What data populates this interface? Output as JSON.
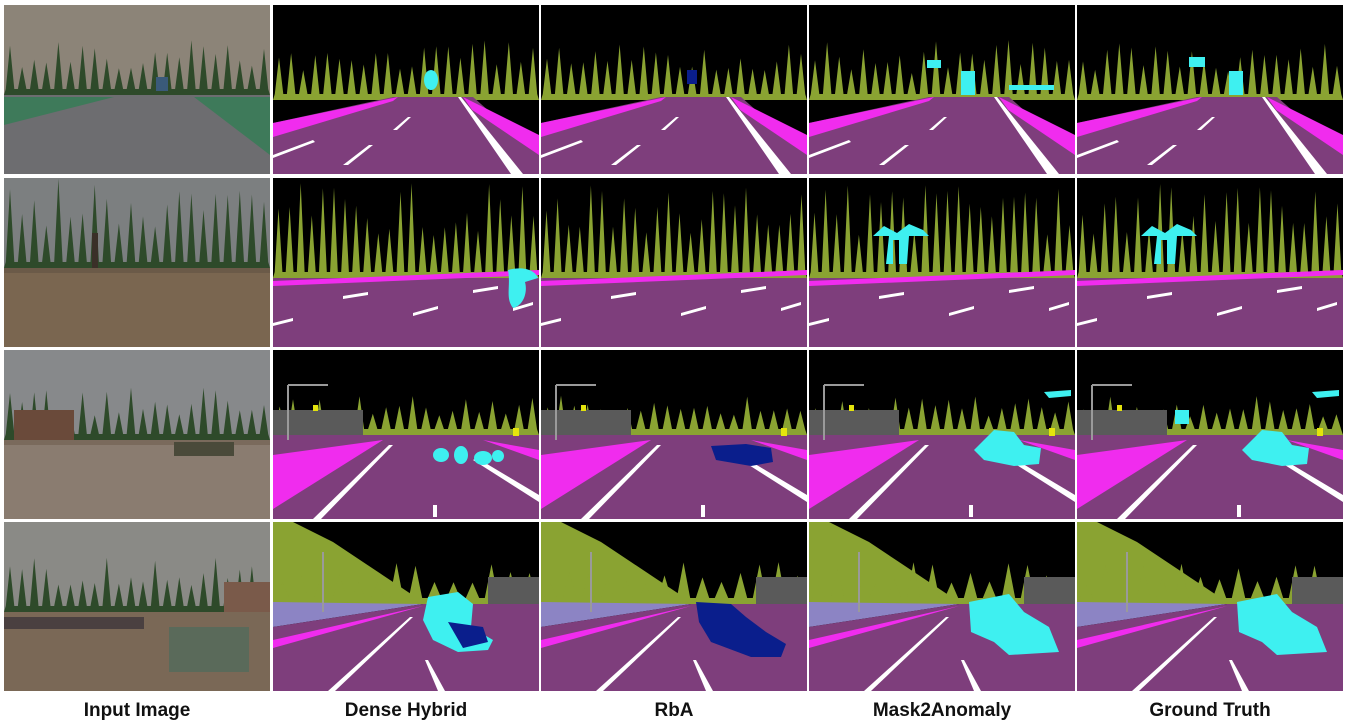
{
  "columns": [
    {
      "key": "input",
      "label": "Input Image"
    },
    {
      "key": "densehybrid",
      "label": "Dense Hybrid"
    },
    {
      "key": "rba",
      "label": "RbA"
    },
    {
      "key": "mask2anomaly",
      "label": "Mask2Anomaly"
    },
    {
      "key": "gt",
      "label": "Ground Truth"
    }
  ],
  "rows": [
    {
      "scene": "road-with-truck",
      "anomaly": "vehicle"
    },
    {
      "scene": "forest-puddle-person",
      "anomaly": "person"
    },
    {
      "scene": "city-flooded-aircraft",
      "anomaly": "aircraft-and-vehicle"
    },
    {
      "scene": "road-flooded-wreck",
      "anomaly": "debris"
    }
  ],
  "palette": {
    "sky": "#000000",
    "vegetation": "#8aa332",
    "road": "#7e3e7c",
    "sidewalk": "#f02cee",
    "anomaly": "#3ef0f0",
    "rba_anomaly": "#0a1e8c",
    "building": "#5a5a5a",
    "wall": "#8c84c4",
    "lane_marking": "#ffffff",
    "pole": "#9a9a9a",
    "traffic_sign": "#e4e40c"
  }
}
